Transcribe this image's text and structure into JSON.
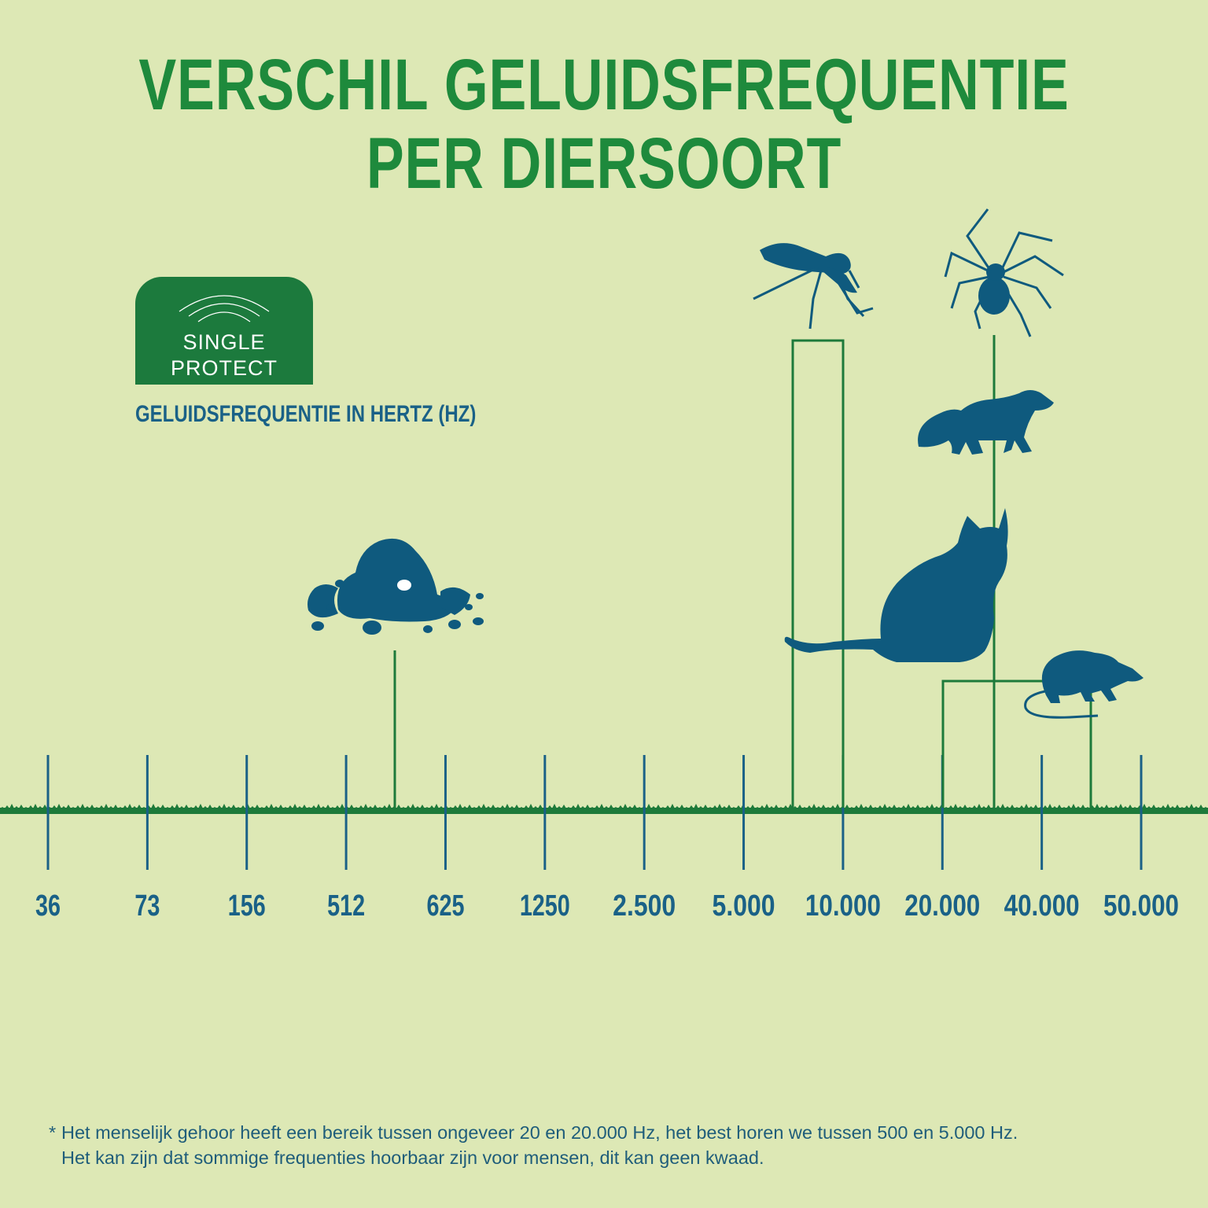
{
  "title": {
    "line1": "VERSCHIL GELUIDSFREQUENTIE",
    "line2": "PER DIERSOORT"
  },
  "badge": {
    "line1": "SINGLE",
    "line2": "PROTECT"
  },
  "subtitle": "GELUIDSFREQUENTIE IN HERTZ (HZ)",
  "footnote": {
    "star": "*",
    "line1": "Het menselijk gehoor heeft een bereik tussen ongeveer 20 en 20.000 Hz, het best horen we tussen 500 en 5.000 Hz.",
    "line2": "Het kan zijn dat sommige frequenties hoorbaar zijn voor mensen, dit kan geen kwaad."
  },
  "colors": {
    "background": "#dde8b5",
    "title_green": "#1e8a3c",
    "badge_green": "#1c7a3d",
    "axis_blue": "#1a6187",
    "animal_blue": "#0f5a7e",
    "line_green": "#1d7a3a"
  },
  "chart_data": {
    "type": "bar",
    "xlabel": "GELUIDSFREQUENTIE IN HERTZ (HZ)",
    "tick_labels": [
      "36",
      "73",
      "156",
      "512",
      "625",
      "1250",
      "2.500",
      "5.000",
      "10.000",
      "20.000",
      "40.000",
      "50.000"
    ],
    "axis_scale": "categorical (non-linear frequency ticks)",
    "animals": [
      {
        "icon": "mole-icon",
        "frequency_range_hz": [
          512,
          625
        ],
        "marker": "single line between 512 and 625"
      },
      {
        "icon": "mosquito-icon",
        "frequency_range_hz": [
          5000,
          10000
        ],
        "marker": "bracket"
      },
      {
        "icon": "cat-icon",
        "frequency_range_hz": [
          5000,
          10000
        ],
        "marker": "bracket"
      },
      {
        "icon": "spider-icon",
        "frequency_range_hz": [
          20000,
          40000
        ],
        "marker": "single line"
      },
      {
        "icon": "marten-icon",
        "frequency_range_hz": [
          20000,
          40000
        ],
        "marker": "single line"
      },
      {
        "icon": "mouse-icon",
        "frequency_range_hz": [
          20000,
          50000
        ],
        "marker": "bracket"
      }
    ],
    "grid": false,
    "legend": "none"
  }
}
